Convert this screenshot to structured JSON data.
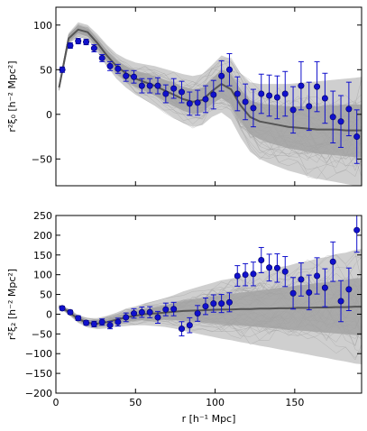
{
  "chart_data": [
    {
      "type": "scatter",
      "title": "",
      "ylabel": "r²ξ₀ [h⁻² Mpc²]",
      "xlabel": "",
      "xlim": [
        0,
        192
      ],
      "ylim": [
        -80,
        120
      ],
      "xticks": [
        0,
        50,
        100,
        150
      ],
      "yticks": [
        -50,
        0,
        50,
        100
      ],
      "x_tick_labels": [
        "",
        "",
        "",
        ""
      ],
      "y_tick_labels": [
        "−50",
        "0",
        "50",
        "100"
      ],
      "colors": {
        "points": "#1010cc",
        "model_line": "#555555",
        "band_outer": "#cfcfcf",
        "band_inner": "#a3a3a3"
      },
      "series": [
        {
          "x": [
            4,
            9,
            14,
            19,
            24,
            29,
            34,
            39,
            44,
            49,
            54,
            59,
            64,
            69,
            74,
            79,
            84,
            89,
            94,
            99,
            104,
            109,
            114,
            119,
            124,
            129,
            134,
            139,
            144,
            149,
            154,
            159,
            164,
            169,
            174,
            179,
            184,
            189
          ],
          "y": [
            50,
            77,
            82,
            81,
            74,
            63,
            54,
            51,
            43,
            42,
            32,
            32,
            32,
            23,
            29,
            25,
            12,
            13,
            17,
            22,
            43,
            50,
            23,
            14,
            7,
            23,
            21,
            19,
            23,
            5,
            32,
            9,
            31,
            18,
            -3,
            -8,
            6,
            -25
          ],
          "yerr": [
            3,
            3,
            3,
            3,
            4,
            4,
            5,
            5,
            6,
            7,
            8,
            8,
            9,
            10,
            11,
            12,
            13,
            14,
            15,
            16,
            17,
            18,
            19,
            20,
            21,
            22,
            23,
            24,
            25,
            26,
            27,
            27,
            28,
            28,
            29,
            29,
            30,
            30
          ]
        }
      ],
      "model": {
        "x": [
          2,
          8,
          14,
          20,
          26,
          32,
          38,
          44,
          50,
          56,
          62,
          68,
          74,
          80,
          86,
          92,
          98,
          104,
          110,
          116,
          122,
          128,
          134,
          140,
          146,
          152,
          158,
          164,
          170,
          176,
          182,
          188,
          192
        ],
        "mean": [
          30,
          85,
          95,
          92,
          80,
          66,
          54,
          46,
          40,
          36,
          32,
          27,
          22,
          17,
          14,
          16,
          26,
          34,
          28,
          10,
          -3,
          -8,
          -10,
          -12,
          -14,
          -15,
          -16,
          -17,
          -17,
          -17,
          -18,
          -18,
          -18
        ],
        "inner_low": [
          28,
          82,
          91,
          88,
          75,
          60,
          47,
          38,
          31,
          26,
          21,
          15,
          9,
          4,
          0,
          2,
          12,
          18,
          11,
          -8,
          -22,
          -28,
          -32,
          -35,
          -38,
          -40,
          -42,
          -44,
          -45,
          -46,
          -47,
          -48,
          -48
        ],
        "inner_high": [
          32,
          88,
          99,
          96,
          85,
          72,
          61,
          54,
          49,
          46,
          43,
          39,
          35,
          31,
          28,
          30,
          40,
          50,
          45,
          28,
          16,
          12,
          11,
          10,
          9,
          9,
          9,
          9,
          10,
          10,
          11,
          11,
          11
        ],
        "outer_low": [
          26,
          79,
          87,
          84,
          70,
          54,
          40,
          30,
          22,
          16,
          10,
          3,
          -4,
          -10,
          -14,
          -12,
          -3,
          2,
          -6,
          -26,
          -42,
          -50,
          -55,
          -59,
          -63,
          -66,
          -69,
          -72,
          -74,
          -76,
          -78,
          -80,
          -80
        ],
        "outer_high": [
          34,
          91,
          103,
          100,
          90,
          78,
          68,
          62,
          58,
          56,
          54,
          51,
          48,
          45,
          43,
          45,
          55,
          66,
          62,
          46,
          36,
          34,
          34,
          34,
          34,
          35,
          36,
          37,
          38,
          39,
          40,
          41,
          42
        ]
      }
    },
    {
      "type": "scatter",
      "title": "",
      "ylabel": "r²ξ₂ [h⁻² Mpc²]",
      "xlabel": "r [h⁻¹ Mpc]",
      "xlim": [
        0,
        192
      ],
      "ylim": [
        -200,
        250
      ],
      "xticks": [
        0,
        50,
        100,
        150
      ],
      "yticks": [
        -200,
        -150,
        -100,
        -50,
        0,
        50,
        100,
        150,
        200,
        250
      ],
      "x_tick_labels": [
        "0",
        "50",
        "100",
        "150"
      ],
      "y_tick_labels": [
        "−200",
        "−150",
        "−100",
        "−50",
        "0",
        "50",
        "100",
        "150",
        "200",
        "250"
      ],
      "series": [
        {
          "x": [
            4,
            9,
            14,
            19,
            24,
            29,
            34,
            39,
            44,
            49,
            54,
            59,
            64,
            69,
            74,
            79,
            84,
            89,
            94,
            99,
            104,
            109,
            114,
            119,
            124,
            129,
            134,
            139,
            144,
            149,
            154,
            159,
            164,
            169,
            174,
            179,
            184,
            189
          ],
          "y": [
            15,
            5,
            -10,
            -22,
            -25,
            -20,
            -28,
            -20,
            -8,
            2,
            5,
            5,
            -8,
            12,
            13,
            -37,
            -28,
            2,
            20,
            27,
            27,
            30,
            97,
            100,
            102,
            137,
            118,
            117,
            108,
            53,
            88,
            55,
            97,
            67,
            133,
            33,
            63,
            213
          ],
          "yerr": [
            5,
            5,
            6,
            6,
            7,
            8,
            9,
            10,
            11,
            12,
            13,
            14,
            15,
            16,
            17,
            18,
            19,
            20,
            21,
            22,
            23,
            24,
            26,
            28,
            30,
            32,
            34,
            36,
            38,
            40,
            42,
            44,
            46,
            48,
            50,
            52,
            54,
            56
          ]
        }
      ],
      "model": {
        "x": [
          2,
          8,
          14,
          20,
          26,
          32,
          38,
          44,
          50,
          56,
          62,
          68,
          74,
          80,
          86,
          92,
          98,
          104,
          110,
          116,
          122,
          128,
          134,
          140,
          146,
          152,
          158,
          164,
          170,
          176,
          182,
          188,
          192
        ],
        "mean": [
          20,
          6,
          -12,
          -22,
          -24,
          -20,
          -14,
          -8,
          -4,
          0,
          2,
          4,
          6,
          8,
          9,
          10,
          11,
          12,
          12,
          13,
          13,
          14,
          14,
          15,
          15,
          16,
          16,
          17,
          17,
          18,
          18,
          19,
          19
        ],
        "inner_low": [
          18,
          2,
          -17,
          -28,
          -31,
          -28,
          -23,
          -19,
          -16,
          -14,
          -14,
          -14,
          -15,
          -17,
          -19,
          -21,
          -23,
          -25,
          -27,
          -29,
          -31,
          -33,
          -35,
          -37,
          -39,
          -41,
          -43,
          -45,
          -47,
          -49,
          -51,
          -53,
          -54
        ],
        "inner_high": [
          22,
          10,
          -7,
          -16,
          -17,
          -12,
          -5,
          3,
          8,
          14,
          18,
          22,
          27,
          33,
          37,
          41,
          45,
          49,
          51,
          55,
          57,
          61,
          63,
          67,
          69,
          73,
          75,
          79,
          81,
          85,
          87,
          91,
          92
        ],
        "outer_low": [
          16,
          -2,
          -22,
          -34,
          -38,
          -36,
          -32,
          -30,
          -28,
          -28,
          -30,
          -32,
          -36,
          -42,
          -47,
          -52,
          -57,
          -62,
          -66,
          -71,
          -75,
          -80,
          -84,
          -89,
          -93,
          -98,
          -102,
          -107,
          -111,
          -116,
          -120,
          -125,
          -127
        ],
        "outer_high": [
          24,
          14,
          -2,
          -10,
          -10,
          -4,
          4,
          14,
          20,
          28,
          34,
          40,
          48,
          58,
          65,
          72,
          79,
          86,
          90,
          97,
          101,
          108,
          112,
          119,
          123,
          130,
          134,
          141,
          145,
          152,
          156,
          163,
          165
        ]
      }
    }
  ]
}
